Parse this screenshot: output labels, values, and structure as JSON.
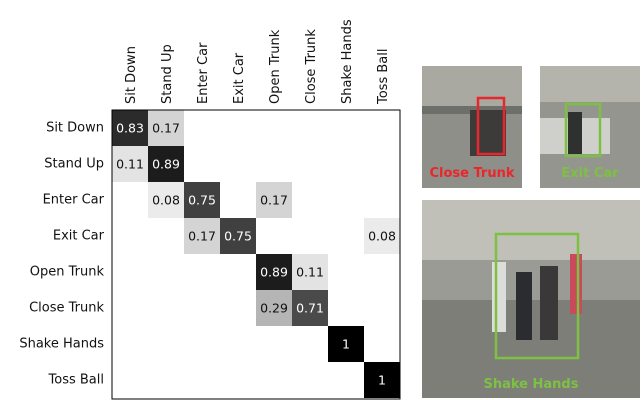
{
  "matrix": {
    "columns": [
      "Sit Down",
      "Stand Up",
      "Enter Car",
      "Exit Car",
      "Open Trunk",
      "Close Trunk",
      "Shake Hands",
      "Toss Ball"
    ],
    "rows": [
      "Sit Down",
      "Stand Up",
      "Enter Car",
      "Exit Car",
      "Open Trunk",
      "Close Trunk",
      "Shake Hands",
      "Toss Ball"
    ],
    "values": [
      [
        0.83,
        0.17,
        null,
        null,
        null,
        null,
        null,
        null
      ],
      [
        0.11,
        0.89,
        null,
        null,
        null,
        null,
        null,
        null
      ],
      [
        null,
        0.08,
        0.75,
        null,
        0.17,
        null,
        null,
        null
      ],
      [
        null,
        null,
        0.17,
        0.75,
        null,
        null,
        null,
        0.08
      ],
      [
        null,
        null,
        null,
        null,
        0.89,
        0.11,
        null,
        null
      ],
      [
        null,
        null,
        null,
        null,
        0.29,
        0.71,
        null,
        null
      ],
      [
        null,
        null,
        null,
        null,
        null,
        null,
        1,
        null
      ],
      [
        null,
        null,
        null,
        null,
        null,
        null,
        null,
        1
      ]
    ]
  },
  "photos": [
    {
      "label": "Close Trunk",
      "color": "#e8262b"
    },
    {
      "label": "Exit Car",
      "color": "#7dc142"
    },
    {
      "label": "Shake Hands",
      "color": "#7dc142"
    }
  ]
}
